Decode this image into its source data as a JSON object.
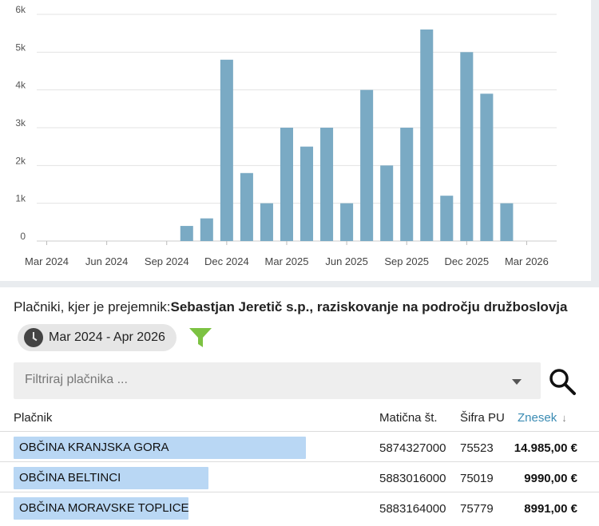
{
  "chart_data": {
    "type": "bar",
    "x_tick_labels": [
      "Mar 2024",
      "Jun 2024",
      "Sep 2024",
      "Dec 2024",
      "Mar 2025",
      "Jun 2025",
      "Sep 2025",
      "Dec 2025",
      "Mar 2026"
    ],
    "y_tick_labels": [
      "0",
      "1k",
      "2k",
      "3k",
      "4k",
      "5k",
      "6k"
    ],
    "ylim": [
      0,
      6000
    ],
    "grid": true,
    "bar_color": "#7aaac4",
    "categories": [
      "2024-03",
      "2024-04",
      "2024-05",
      "2024-06",
      "2024-07",
      "2024-08",
      "2024-09",
      "2024-10",
      "2024-11",
      "2024-12",
      "2025-01",
      "2025-02",
      "2025-03",
      "2025-04",
      "2025-05",
      "2025-06",
      "2025-07",
      "2025-08",
      "2025-09",
      "2025-10",
      "2025-11",
      "2025-12",
      "2026-01",
      "2026-02",
      "2026-03",
      "2026-04"
    ],
    "values": [
      0,
      0,
      0,
      0,
      0,
      0,
      0,
      400,
      600,
      4800,
      1800,
      1000,
      3000,
      2500,
      3000,
      1000,
      4000,
      2000,
      3000,
      5600,
      1200,
      5000,
      3900,
      1000,
      0,
      0
    ]
  },
  "title": {
    "prefix": "Plačniki, kjer je prejemnik:",
    "recipient": "Sebastjan Jeretič s.p., raziskovanje na področju družboslovja"
  },
  "date_range": "Mar 2024 - Apr 2026",
  "filter": {
    "placeholder": "Filtriraj plačnika ..."
  },
  "table": {
    "headers": {
      "payer": "Plačnik",
      "reg_no": "Matična št.",
      "code": "Šifra PU",
      "amount": "Znesek",
      "sort_arrow": "↓"
    },
    "rows": [
      {
        "payer": "OBČINA KRANJSKA GORA",
        "reg_no": "5874327000",
        "code": "75523",
        "amount": "14.985,00 €",
        "share": 1.0
      },
      {
        "payer": "OBČINA BELTINCI",
        "reg_no": "5883016000",
        "code": "75019",
        "amount": "9990,00 €",
        "share": 0.667
      },
      {
        "payer": "OBČINA MORAVSKE TOPLICE",
        "reg_no": "5883164000",
        "code": "75779",
        "amount": "8991,00 €",
        "share": 0.6
      }
    ]
  },
  "colors": {
    "accent": "#3a8bb3",
    "row_bar": "#b9d7f4",
    "filter_icon": "#7cc242"
  },
  "icons": {
    "date": "clock-icon",
    "filter": "funnel-icon",
    "search": "search-icon",
    "dropdown": "caret-down-icon"
  }
}
